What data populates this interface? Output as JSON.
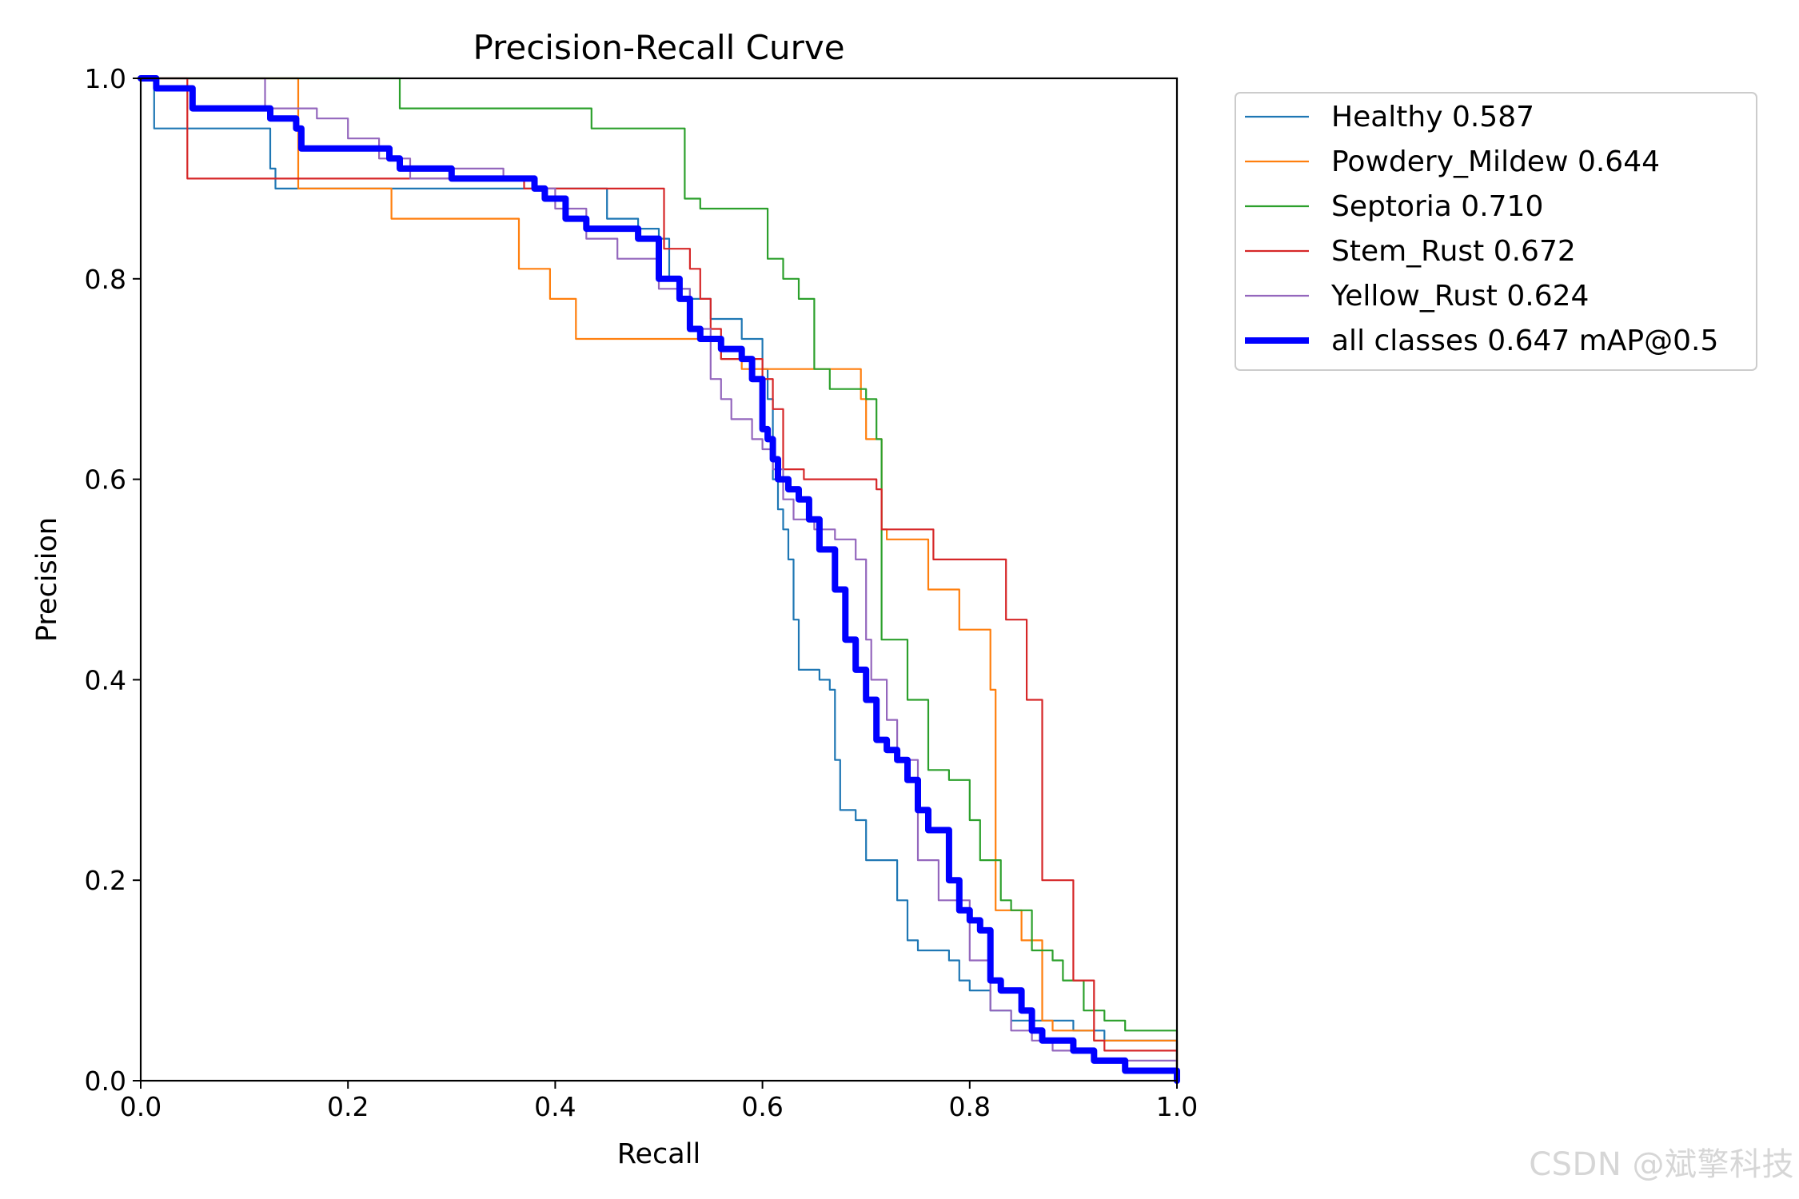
{
  "chart_data": {
    "type": "line",
    "title": "Precision-Recall Curve",
    "xlabel": "Recall",
    "ylabel": "Precision",
    "xlim": [
      0,
      1
    ],
    "ylim": [
      0,
      1
    ],
    "xticks": [
      "0.0",
      "0.2",
      "0.4",
      "0.6",
      "0.8",
      "1.0"
    ],
    "yticks": [
      "0.0",
      "0.2",
      "0.4",
      "0.6",
      "0.8",
      "1.0"
    ],
    "grid": false,
    "legend_position": "outside-top-right",
    "series": [
      {
        "name": "Healthy",
        "score": "0.587",
        "color": "#1f77b4",
        "label": "Healthy 0.587",
        "x": [
          0,
          0.01,
          0.013,
          0.12,
          0.125,
          0.13,
          0.135,
          0.4,
          0.45,
          0.48,
          0.5,
          0.51,
          0.52,
          0.53,
          0.55,
          0.58,
          0.6,
          0.605,
          0.61,
          0.615,
          0.62,
          0.625,
          0.63,
          0.63,
          0.635,
          0.655,
          0.665,
          0.67,
          0.675,
          0.68,
          0.69,
          0.7,
          0.7,
          0.73,
          0.74,
          0.75,
          0.76,
          0.78,
          0.79,
          0.8,
          0.82,
          0.84,
          0.86,
          0.9,
          0.93,
          1.0
        ],
        "y": [
          1.0,
          1.0,
          0.95,
          0.95,
          0.91,
          0.89,
          0.89,
          0.89,
          0.86,
          0.85,
          0.84,
          0.8,
          0.79,
          0.78,
          0.76,
          0.74,
          0.71,
          0.68,
          0.6,
          0.57,
          0.55,
          0.52,
          0.5,
          0.46,
          0.41,
          0.4,
          0.39,
          0.32,
          0.27,
          0.27,
          0.26,
          0.25,
          0.22,
          0.18,
          0.14,
          0.13,
          0.13,
          0.12,
          0.1,
          0.09,
          0.07,
          0.06,
          0.06,
          0.05,
          0.04,
          0.0
        ]
      },
      {
        "name": "Powdery_Mildew",
        "score": "0.644",
        "color": "#ff7f0e",
        "label": "Powdery_Mildew 0.644",
        "x": [
          0,
          0.15,
          0.152,
          0.24,
          0.242,
          0.36,
          0.365,
          0.395,
          0.42,
          0.55,
          0.56,
          0.58,
          0.6,
          0.665,
          0.695,
          0.7,
          0.715,
          0.72,
          0.76,
          0.79,
          0.82,
          0.825,
          0.85,
          0.87,
          0.88,
          0.9,
          0.92,
          1.0
        ],
        "y": [
          1.0,
          1.0,
          0.89,
          0.89,
          0.86,
          0.86,
          0.81,
          0.78,
          0.74,
          0.74,
          0.72,
          0.71,
          0.71,
          0.71,
          0.68,
          0.64,
          0.55,
          0.54,
          0.49,
          0.45,
          0.39,
          0.17,
          0.14,
          0.06,
          0.05,
          0.05,
          0.04,
          0.0
        ]
      },
      {
        "name": "Septoria",
        "score": "0.710",
        "color": "#2ca02c",
        "label": "Septoria 0.710",
        "x": [
          0,
          0.245,
          0.25,
          0.43,
          0.435,
          0.52,
          0.525,
          0.54,
          0.55,
          0.6,
          0.605,
          0.62,
          0.635,
          0.65,
          0.665,
          0.7,
          0.71,
          0.715,
          0.72,
          0.74,
          0.76,
          0.77,
          0.78,
          0.8,
          0.81,
          0.83,
          0.84,
          0.86,
          0.88,
          0.89,
          0.91,
          0.93,
          0.95,
          1.0
        ],
        "y": [
          1.0,
          1.0,
          0.97,
          0.97,
          0.95,
          0.95,
          0.88,
          0.87,
          0.87,
          0.87,
          0.82,
          0.8,
          0.78,
          0.71,
          0.69,
          0.68,
          0.64,
          0.44,
          0.44,
          0.38,
          0.31,
          0.31,
          0.3,
          0.26,
          0.22,
          0.18,
          0.17,
          0.13,
          0.12,
          0.1,
          0.07,
          0.06,
          0.05,
          0.0
        ]
      },
      {
        "name": "Stem_Rust",
        "score": "0.672",
        "color": "#d62728",
        "label": "Stem_Rust 0.672",
        "x": [
          0,
          0.04,
          0.045,
          0.34,
          0.37,
          0.5,
          0.505,
          0.52,
          0.53,
          0.54,
          0.55,
          0.56,
          0.57,
          0.6,
          0.61,
          0.62,
          0.64,
          0.68,
          0.71,
          0.715,
          0.76,
          0.765,
          0.81,
          0.835,
          0.855,
          0.87,
          0.87,
          0.9,
          0.9,
          0.92,
          0.93,
          1.0
        ],
        "y": [
          1.0,
          1.0,
          0.9,
          0.9,
          0.89,
          0.89,
          0.83,
          0.83,
          0.81,
          0.78,
          0.75,
          0.72,
          0.72,
          0.7,
          0.67,
          0.61,
          0.6,
          0.6,
          0.59,
          0.55,
          0.55,
          0.52,
          0.52,
          0.46,
          0.38,
          0.38,
          0.2,
          0.14,
          0.1,
          0.04,
          0.03,
          0.0
        ]
      },
      {
        "name": "Yellow_Rust",
        "score": "0.624",
        "color": "#9467bd",
        "label": "Yellow_Rust 0.624",
        "x": [
          0,
          0.115,
          0.12,
          0.17,
          0.2,
          0.23,
          0.26,
          0.3,
          0.35,
          0.38,
          0.4,
          0.43,
          0.46,
          0.5,
          0.53,
          0.55,
          0.56,
          0.57,
          0.59,
          0.6,
          0.61,
          0.62,
          0.63,
          0.65,
          0.67,
          0.68,
          0.69,
          0.7,
          0.705,
          0.72,
          0.73,
          0.75,
          0.77,
          0.8,
          0.82,
          0.84,
          0.86,
          0.88,
          0.92,
          1.0
        ],
        "y": [
          1.0,
          1.0,
          0.97,
          0.96,
          0.94,
          0.92,
          0.9,
          0.91,
          0.9,
          0.89,
          0.87,
          0.84,
          0.82,
          0.79,
          0.75,
          0.7,
          0.68,
          0.66,
          0.64,
          0.63,
          0.61,
          0.58,
          0.56,
          0.55,
          0.54,
          0.54,
          0.52,
          0.44,
          0.4,
          0.36,
          0.32,
          0.22,
          0.18,
          0.12,
          0.07,
          0.05,
          0.04,
          0.03,
          0.02,
          0.0
        ]
      },
      {
        "name": "all classes",
        "score": "0.647 mAP@0.5",
        "color": "#0000ff",
        "label": "all classes 0.647 mAP@0.5",
        "thick": true,
        "x": [
          0,
          0.01,
          0.015,
          0.045,
          0.05,
          0.12,
          0.125,
          0.15,
          0.155,
          0.17,
          0.24,
          0.25,
          0.3,
          0.36,
          0.38,
          0.39,
          0.41,
          0.43,
          0.45,
          0.48,
          0.5,
          0.52,
          0.53,
          0.54,
          0.56,
          0.58,
          0.59,
          0.6,
          0.605,
          0.61,
          0.615,
          0.625,
          0.635,
          0.645,
          0.655,
          0.67,
          0.68,
          0.69,
          0.7,
          0.71,
          0.72,
          0.73,
          0.74,
          0.75,
          0.76,
          0.78,
          0.79,
          0.8,
          0.81,
          0.82,
          0.83,
          0.84,
          0.85,
          0.86,
          0.87,
          0.9,
          0.92,
          0.93,
          0.95,
          1.0
        ],
        "y": [
          1.0,
          1.0,
          0.99,
          0.99,
          0.97,
          0.97,
          0.96,
          0.95,
          0.93,
          0.93,
          0.92,
          0.91,
          0.9,
          0.9,
          0.89,
          0.88,
          0.86,
          0.85,
          0.85,
          0.84,
          0.8,
          0.78,
          0.75,
          0.74,
          0.73,
          0.72,
          0.7,
          0.65,
          0.64,
          0.62,
          0.6,
          0.59,
          0.58,
          0.56,
          0.53,
          0.49,
          0.44,
          0.41,
          0.38,
          0.34,
          0.33,
          0.32,
          0.3,
          0.27,
          0.25,
          0.2,
          0.17,
          0.16,
          0.15,
          0.1,
          0.09,
          0.09,
          0.07,
          0.05,
          0.04,
          0.03,
          0.02,
          0.02,
          0.01,
          0.0
        ]
      }
    ]
  },
  "watermark": "CSDN @斌擎科技"
}
